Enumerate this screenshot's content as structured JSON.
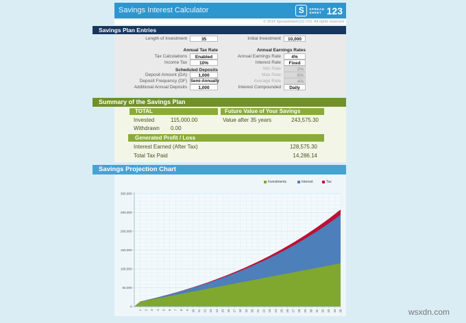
{
  "header": {
    "title": "Savings Interest Calculator",
    "logo": {
      "s": "S",
      "spread": "SPREAD",
      "sheet": "SHEET",
      "num": "123"
    },
    "copyright": "© 2014 Spreadsheet123 LTD. All rights reserved"
  },
  "sections": {
    "entries": "Savings Plan Entries",
    "summary": "Summary of the Savings Plan",
    "chart": "Savings Projection Chart"
  },
  "entries": {
    "left": [
      {
        "label": "Length of Investment",
        "value": "35"
      },
      {
        "label": "Tax Calculations",
        "value": "Enabled"
      },
      {
        "label": "Income Tax",
        "value": "10%"
      },
      {
        "label": "Deposit Amount (DA)",
        "value": "1,000"
      },
      {
        "label": "Deposit Frequency (DF)",
        "value": "Semi-Annually"
      },
      {
        "label": "Additional Annual Deposits",
        "value": "1,000"
      }
    ],
    "left_headers": [
      "Annual Tax Rate",
      "Scheduled Deposits"
    ],
    "right": [
      {
        "label": "Initial Investment",
        "value": "10,000"
      },
      {
        "label": "Annual Earnings Rate",
        "value": "4%"
      },
      {
        "label": "Interest Rate",
        "value": "Fixed"
      },
      {
        "label": "Interest Compounded",
        "value": "Daily"
      }
    ],
    "right_header": "Annual Earnings Rates",
    "right_disabled": [
      {
        "label": "Min Rate",
        "value": "2%"
      },
      {
        "label": "Max Rate",
        "value": "6%"
      },
      {
        "label": "Average Rate",
        "value": "4%"
      }
    ]
  },
  "summary": {
    "total_header": "TOTAL",
    "future_header": "Future Value of Your Savings",
    "profit_header": "Generated Profit / Loss",
    "invested_label": "Invested",
    "invested_value": "115,000.00",
    "withdrawn_label": "Withdrawn",
    "withdrawn_value": "0.00",
    "future_label": "Value after 35 years",
    "future_value": "243,575.30",
    "interest_label": "Interest Earned (After Tax)",
    "interest_value": "128,575.30",
    "tax_label": "Total Tax Paid",
    "tax_value": "14,286.14"
  },
  "chart_data": {
    "type": "area",
    "stacked": true,
    "title": "Savings Projection Chart",
    "categories": [
      1,
      2,
      3,
      4,
      5,
      6,
      7,
      8,
      9,
      10,
      11,
      12,
      13,
      14,
      15,
      16,
      17,
      18,
      19,
      20,
      21,
      22,
      23,
      24,
      25,
      26,
      27,
      28,
      29,
      30,
      31,
      32,
      33,
      34,
      35
    ],
    "series": [
      {
        "name": "Investments",
        "color": "#80a82e",
        "values": [
          13000,
          16000,
          19000,
          22000,
          25000,
          28000,
          31000,
          34000,
          37000,
          40000,
          43000,
          46000,
          49000,
          52000,
          55000,
          58000,
          61000,
          64000,
          67000,
          70000,
          73000,
          76000,
          79000,
          82000,
          85000,
          88000,
          91000,
          94000,
          97000,
          100000,
          103000,
          106000,
          109000,
          112000,
          115000
        ]
      },
      {
        "name": "Interest",
        "color": "#4d7fba",
        "values": [
          419,
          962,
          1633,
          2438,
          3381,
          4467,
          5702,
          7090,
          8637,
          10350,
          12232,
          14292,
          16536,
          18969,
          21599,
          24432,
          27478,
          30742,
          34232,
          37957,
          41926,
          46147,
          50629,
          55382,
          60415,
          65737,
          71361,
          77296,
          83556,
          90150,
          97094,
          104397,
          112058,
          120113,
          128575
        ]
      },
      {
        "name": "Tax",
        "color": "#bd1135",
        "values": [
          47,
          107,
          181,
          271,
          376,
          496,
          634,
          788,
          960,
          1150,
          1359,
          1588,
          1837,
          2108,
          2400,
          2715,
          3053,
          3416,
          3804,
          4217,
          4658,
          5127,
          5625,
          6154,
          6713,
          7304,
          7929,
          8588,
          9284,
          10017,
          10788,
          11600,
          12451,
          13346,
          14286
        ]
      }
    ],
    "ylim": [
      0,
      300000
    ],
    "y_ticks": [
      "0",
      "50,000",
      "100,000",
      "150,000",
      "200,000",
      "250,000",
      "300,000"
    ],
    "xlabel": "",
    "ylabel": "",
    "grid": true,
    "legend_position": "top-right"
  },
  "watermark": "wsxdn.com"
}
